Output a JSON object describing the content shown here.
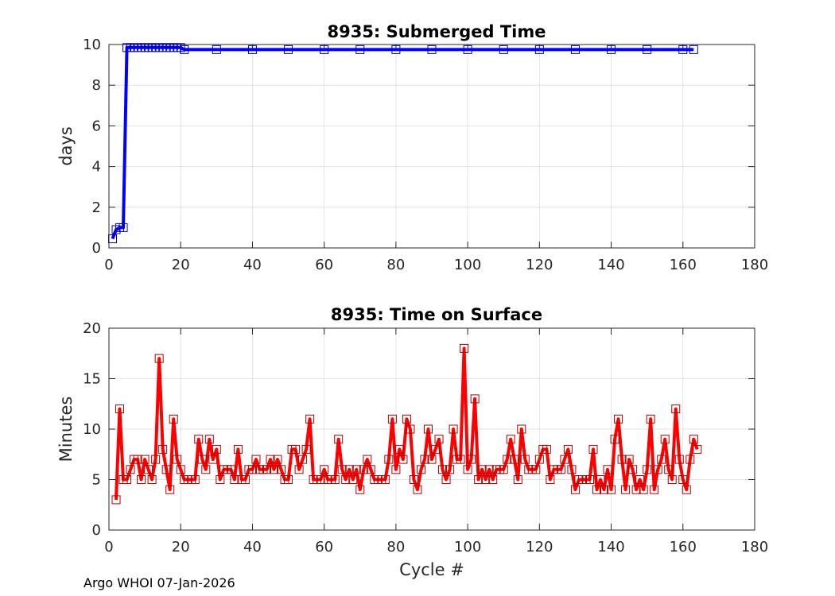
{
  "footer": "Argo WHOI 07-Jan-2026",
  "chart_data": [
    {
      "type": "line",
      "title": "8935: Submerged Time",
      "xlabel": "",
      "ylabel": "days",
      "xlim": [
        0,
        180
      ],
      "ylim": [
        0,
        10
      ],
      "xticks": [
        "0",
        "20",
        "40",
        "60",
        "80",
        "100",
        "120",
        "140",
        "160",
        "180"
      ],
      "yticks": [
        "0",
        "2",
        "4",
        "6",
        "8",
        "10"
      ],
      "grid": true,
      "color": "#0000ff",
      "marker": "square",
      "points": [
        [
          1,
          0.45
        ],
        [
          2,
          0.9
        ],
        [
          3,
          1.0
        ],
        [
          4,
          1.0
        ],
        [
          5,
          9.85
        ],
        [
          6,
          9.85
        ],
        [
          7,
          9.85
        ],
        [
          8,
          9.85
        ],
        [
          9,
          9.85
        ],
        [
          10,
          9.85
        ],
        [
          11,
          9.85
        ],
        [
          12,
          9.85
        ],
        [
          13,
          9.85
        ],
        [
          14,
          9.85
        ],
        [
          15,
          9.85
        ],
        [
          16,
          9.85
        ],
        [
          17,
          9.85
        ],
        [
          18,
          9.85
        ],
        [
          19,
          9.85
        ],
        [
          20,
          9.85
        ],
        [
          21,
          9.75
        ],
        [
          30,
          9.75
        ],
        [
          40,
          9.75
        ],
        [
          50,
          9.75
        ],
        [
          60,
          9.75
        ],
        [
          70,
          9.75
        ],
        [
          80,
          9.75
        ],
        [
          90,
          9.75
        ],
        [
          100,
          9.75
        ],
        [
          110,
          9.75
        ],
        [
          120,
          9.75
        ],
        [
          130,
          9.75
        ],
        [
          140,
          9.75
        ],
        [
          150,
          9.75
        ],
        [
          160,
          9.75
        ],
        [
          163,
          9.75
        ]
      ]
    },
    {
      "type": "line",
      "title": "8935: Time on Surface",
      "xlabel": "Cycle #",
      "ylabel": "Minutes",
      "xlim": [
        0,
        180
      ],
      "ylim": [
        0,
        20
      ],
      "xticks": [
        "0",
        "20",
        "40",
        "60",
        "80",
        "100",
        "120",
        "140",
        "160",
        "180"
      ],
      "yticks": [
        "0",
        "5",
        "10",
        "15",
        "20"
      ],
      "grid": true,
      "color": "#ff0000",
      "marker": "square",
      "points": [
        [
          2,
          3
        ],
        [
          3,
          12
        ],
        [
          4,
          5
        ],
        [
          5,
          5
        ],
        [
          6,
          6
        ],
        [
          7,
          7
        ],
        [
          8,
          7
        ],
        [
          9,
          5
        ],
        [
          10,
          7
        ],
        [
          11,
          6
        ],
        [
          12,
          5
        ],
        [
          13,
          7
        ],
        [
          14,
          17
        ],
        [
          15,
          8
        ],
        [
          16,
          6
        ],
        [
          17,
          4
        ],
        [
          18,
          11
        ],
        [
          19,
          7
        ],
        [
          20,
          6
        ],
        [
          21,
          5
        ],
        [
          22,
          5
        ],
        [
          23,
          5
        ],
        [
          24,
          5
        ],
        [
          25,
          9
        ],
        [
          26,
          7
        ],
        [
          27,
          6
        ],
        [
          28,
          9
        ],
        [
          29,
          7
        ],
        [
          30,
          8
        ],
        [
          31,
          5
        ],
        [
          32,
          6
        ],
        [
          33,
          6
        ],
        [
          34,
          6
        ],
        [
          35,
          5
        ],
        [
          36,
          8
        ],
        [
          37,
          5
        ],
        [
          38,
          5
        ],
        [
          39,
          6
        ],
        [
          40,
          6
        ],
        [
          41,
          7
        ],
        [
          42,
          6
        ],
        [
          43,
          6
        ],
        [
          44,
          6
        ],
        [
          45,
          7
        ],
        [
          46,
          6
        ],
        [
          47,
          7
        ],
        [
          48,
          6
        ],
        [
          49,
          5
        ],
        [
          50,
          5
        ],
        [
          51,
          8
        ],
        [
          52,
          8
        ],
        [
          53,
          6
        ],
        [
          54,
          7
        ],
        [
          55,
          8
        ],
        [
          56,
          11
        ],
        [
          57,
          5
        ],
        [
          58,
          5
        ],
        [
          59,
          5
        ],
        [
          60,
          6
        ],
        [
          61,
          5
        ],
        [
          62,
          5
        ],
        [
          63,
          5
        ],
        [
          64,
          9
        ],
        [
          65,
          6
        ],
        [
          66,
          5
        ],
        [
          67,
          6
        ],
        [
          68,
          5
        ],
        [
          69,
          6
        ],
        [
          70,
          4
        ],
        [
          71,
          6
        ],
        [
          72,
          7
        ],
        [
          73,
          6
        ],
        [
          74,
          5
        ],
        [
          75,
          5
        ],
        [
          76,
          5
        ],
        [
          77,
          5
        ],
        [
          78,
          7
        ],
        [
          79,
          11
        ],
        [
          80,
          6
        ],
        [
          81,
          8
        ],
        [
          82,
          7
        ],
        [
          83,
          11
        ],
        [
          84,
          10
        ],
        [
          85,
          5
        ],
        [
          86,
          4
        ],
        [
          87,
          6
        ],
        [
          88,
          7
        ],
        [
          89,
          10
        ],
        [
          90,
          7
        ],
        [
          91,
          8
        ],
        [
          92,
          9
        ],
        [
          93,
          6
        ],
        [
          94,
          5
        ],
        [
          95,
          6
        ],
        [
          96,
          10
        ],
        [
          97,
          7
        ],
        [
          98,
          7
        ],
        [
          99,
          18
        ],
        [
          100,
          6
        ],
        [
          101,
          7
        ],
        [
          102,
          13
        ],
        [
          103,
          5
        ],
        [
          104,
          6
        ],
        [
          105,
          5
        ],
        [
          106,
          6
        ],
        [
          107,
          5
        ],
        [
          108,
          6
        ],
        [
          109,
          6
        ],
        [
          110,
          6
        ],
        [
          111,
          7
        ],
        [
          112,
          9
        ],
        [
          113,
          7
        ],
        [
          114,
          5
        ],
        [
          115,
          10
        ],
        [
          116,
          7
        ],
        [
          117,
          6
        ],
        [
          118,
          6
        ],
        [
          119,
          6
        ],
        [
          120,
          7
        ],
        [
          121,
          8
        ],
        [
          122,
          8
        ],
        [
          123,
          5
        ],
        [
          124,
          6
        ],
        [
          125,
          6
        ],
        [
          126,
          6
        ],
        [
          127,
          7
        ],
        [
          128,
          8
        ],
        [
          129,
          6
        ],
        [
          130,
          4
        ],
        [
          131,
          5
        ],
        [
          132,
          5
        ],
        [
          133,
          5
        ],
        [
          134,
          5
        ],
        [
          135,
          8
        ],
        [
          136,
          4
        ],
        [
          137,
          5
        ],
        [
          138,
          4
        ],
        [
          139,
          6
        ],
        [
          140,
          4
        ],
        [
          141,
          9
        ],
        [
          142,
          11
        ],
        [
          143,
          7
        ],
        [
          144,
          4
        ],
        [
          145,
          7
        ],
        [
          146,
          6
        ],
        [
          147,
          4
        ],
        [
          148,
          5
        ],
        [
          149,
          4
        ],
        [
          150,
          6
        ],
        [
          151,
          11
        ],
        [
          152,
          4
        ],
        [
          153,
          6
        ],
        [
          154,
          7
        ],
        [
          155,
          9
        ],
        [
          156,
          6
        ],
        [
          157,
          5
        ],
        [
          158,
          12
        ],
        [
          159,
          7
        ],
        [
          160,
          5
        ],
        [
          161,
          4
        ],
        [
          162,
          7
        ],
        [
          163,
          9
        ],
        [
          164,
          8
        ]
      ]
    }
  ]
}
